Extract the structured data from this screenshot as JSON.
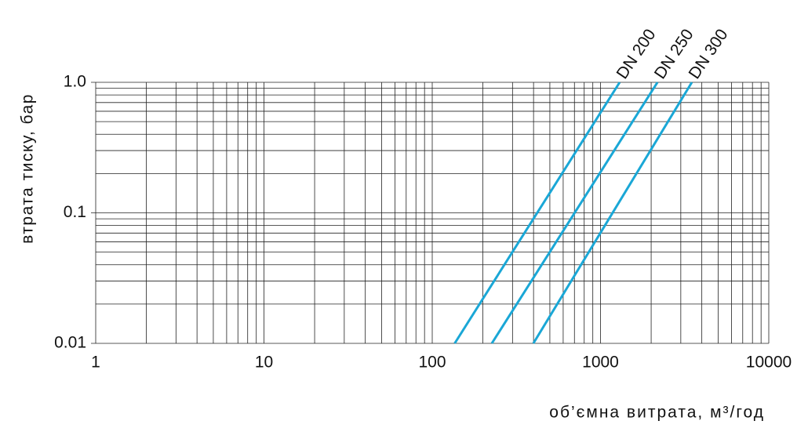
{
  "chart_data": {
    "type": "line",
    "x_label": "об’ємна витрата, м³/год",
    "y_label": "втрата тиску, бар",
    "xscale": "log",
    "yscale": "log",
    "xlim": [
      1,
      10000
    ],
    "ylim": [
      0.01,
      1
    ],
    "xticks": [
      1,
      10,
      100,
      1000,
      10000
    ],
    "yticks": [
      0.01,
      0.1,
      {
        "value": 1,
        "label": "1.0"
      }
    ],
    "grid": true,
    "minor_grid": true,
    "series": [
      {
        "name": "DN 200",
        "color": "#1aa7d6",
        "x": [
          136,
          1300
        ],
        "values": [
          0.01,
          1
        ]
      },
      {
        "name": "DN 250",
        "color": "#1aa7d6",
        "x": [
          226,
          2180
        ],
        "values": [
          0.01,
          1
        ]
      },
      {
        "name": "DN 300",
        "color": "#1aa7d6",
        "x": [
          399,
          3490
        ],
        "values": [
          0.01,
          1
        ]
      }
    ]
  }
}
